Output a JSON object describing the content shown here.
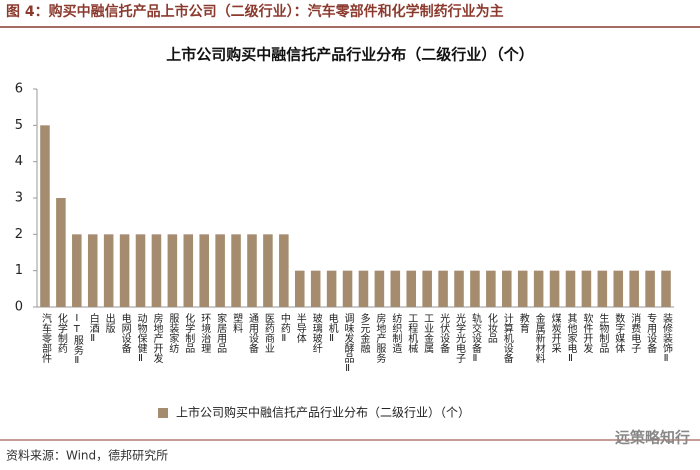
{
  "header": "图 4：购买中融信托产品上市公司（二级行业）：汽车零部件和化学制药行业为主",
  "source": "资料来源：Wind，德邦研究所",
  "watermark": "远策略知行",
  "chart_data": {
    "type": "bar",
    "title": "上市公司购买中融信托产品行业分布（二级行业）（个）",
    "categories": [
      "汽车零部件",
      "化学制药",
      "IT服务Ⅱ",
      "白酒Ⅱ",
      "出版",
      "电网设备",
      "动物保健Ⅱ",
      "房地产开发",
      "服装家纺",
      "化学制品",
      "环境治理",
      "家居用品",
      "塑料",
      "通用设备",
      "医药商业",
      "中药Ⅱ",
      "半导体",
      "玻璃玻纤",
      "电机Ⅱ",
      "调味发酵品Ⅱ",
      "多元金融",
      "房地产服务",
      "纺织制造",
      "工程机械",
      "工业金属",
      "光伏设备",
      "光学光电子",
      "轨交设备Ⅱ",
      "化妆品",
      "计算机设备",
      "教育",
      "金属新材料",
      "煤炭开采",
      "其他家电Ⅱ",
      "软件开发",
      "生物制品",
      "数字媒体",
      "消费电子",
      "专用设备",
      "装修装饰Ⅱ"
    ],
    "series": [
      {
        "name": "上市公司购买中融信托产品行业分布（二级行业）（个）",
        "color": "#a58c6f",
        "values": [
          5,
          3,
          2,
          2,
          2,
          2,
          2,
          2,
          2,
          2,
          2,
          2,
          2,
          2,
          2,
          2,
          1,
          1,
          1,
          1,
          1,
          1,
          1,
          1,
          1,
          1,
          1,
          1,
          1,
          1,
          1,
          1,
          1,
          1,
          1,
          1,
          1,
          1,
          1,
          1
        ]
      }
    ],
    "ylim": [
      0,
      6
    ],
    "yticks": [
      0,
      1,
      2,
      3,
      4,
      5,
      6
    ],
    "grid": false,
    "legend": "bottom"
  }
}
